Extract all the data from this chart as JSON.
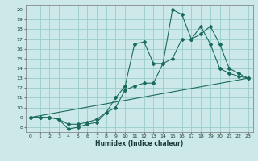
{
  "xlabel": "Humidex (Indice chaleur)",
  "background_color": "#cce8e8",
  "grid_color": "#99cccc",
  "line_color": "#1a6b5a",
  "xlim": [
    -0.5,
    23.5
  ],
  "ylim": [
    7.5,
    20.5
  ],
  "xticks": [
    0,
    1,
    2,
    3,
    4,
    5,
    6,
    7,
    8,
    9,
    10,
    11,
    12,
    13,
    14,
    15,
    16,
    17,
    18,
    19,
    20,
    21,
    22,
    23
  ],
  "yticks": [
    8,
    9,
    10,
    11,
    12,
    13,
    14,
    15,
    16,
    17,
    18,
    19,
    20
  ],
  "series": [
    {
      "x": [
        0,
        1,
        2,
        3,
        4,
        5,
        6,
        7,
        8,
        9,
        10,
        11,
        12,
        13,
        14,
        15,
        16,
        17,
        18,
        19,
        20,
        21,
        22,
        23
      ],
      "y": [
        9,
        9,
        9,
        8.8,
        7.8,
        8.0,
        8.3,
        8.5,
        9.5,
        11.0,
        12.2,
        16.5,
        16.7,
        14.5,
        14.5,
        20.0,
        19.5,
        17.0,
        18.3,
        16.5,
        14.0,
        13.5,
        13.2,
        13.0
      ],
      "has_markers": true
    },
    {
      "x": [
        0,
        1,
        2,
        3,
        4,
        5,
        6,
        7,
        8,
        9,
        10,
        11,
        12,
        13,
        14,
        15,
        16,
        17,
        18,
        19,
        20,
        21,
        22,
        23
      ],
      "y": [
        9,
        9,
        9,
        8.8,
        8.3,
        8.3,
        8.5,
        8.8,
        9.5,
        10.0,
        11.8,
        12.2,
        12.5,
        12.5,
        14.5,
        15.0,
        17.0,
        17.0,
        17.5,
        18.3,
        16.5,
        14.0,
        13.5,
        13.0
      ],
      "has_markers": true
    },
    {
      "x": [
        0,
        23
      ],
      "y": [
        9.0,
        13.0
      ],
      "has_markers": false
    }
  ]
}
